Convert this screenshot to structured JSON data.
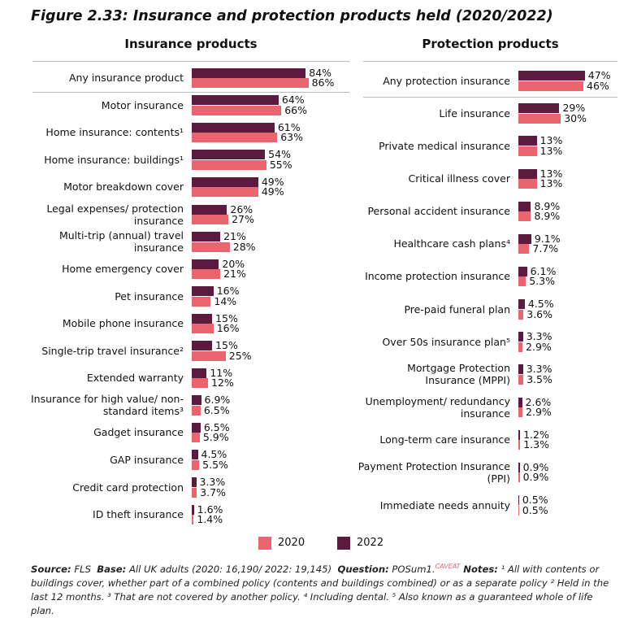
{
  "title": "Figure 2.33: Insurance and protection products held (2020/2022)",
  "chart_data": [
    {
      "type": "bar",
      "orientation": "horizontal",
      "title": "Insurance products",
      "categories": [
        "Any insurance product",
        "Motor insurance",
        "Home insurance: contents¹",
        "Home insurance: buildings¹",
        "Motor breakdown cover",
        "Legal expenses/ protection insurance",
        "Multi-trip (annual) travel insurance",
        "Home emergency cover",
        "Pet insurance",
        "Mobile phone insurance",
        "Single-trip travel insurance²",
        "Extended warranty",
        "Insurance for high value/ non-standard items³",
        "Gadget insurance",
        "GAP insurance",
        "Credit card protection",
        "ID theft insurance"
      ],
      "xlim": [
        0,
        100
      ],
      "series": [
        {
          "name": "2020",
          "color": "#e8646e",
          "values": [
            86,
            66,
            63,
            55,
            49,
            27,
            28,
            21,
            14,
            16,
            25,
            12,
            6.5,
            5.9,
            5.5,
            3.7,
            1.4
          ],
          "value_labels": [
            "86%",
            "66%",
            "63%",
            "55%",
            "49%",
            "27%",
            "28%",
            "21%",
            "14%",
            "16%",
            "25%",
            "12%",
            "6.5%",
            "5.9%",
            "5.5%",
            "3.7%",
            "1.4%"
          ]
        },
        {
          "name": "2022",
          "color": "#5b1a3e",
          "values": [
            84,
            64,
            61,
            54,
            49,
            26,
            21,
            20,
            16,
            15,
            15,
            11,
            6.9,
            6.5,
            4.5,
            3.3,
            1.6
          ],
          "value_labels": [
            "84%",
            "64%",
            "61%",
            "54%",
            "49%",
            "26%",
            "21%",
            "20%",
            "16%",
            "15%",
            "15%",
            "11%",
            "6.9%",
            "6.5%",
            "4.5%",
            "3.3%",
            "1.6%"
          ]
        }
      ]
    },
    {
      "type": "bar",
      "orientation": "horizontal",
      "title": "Protection products",
      "categories": [
        "Any protection insurance",
        "Life insurance",
        "Private medical insurance",
        "Critical illness cover",
        "Personal accident insurance",
        "Healthcare cash plans⁴",
        "Income protection insurance",
        "Pre-paid funeral plan",
        "Over 50s insurance plan⁵",
        "Mortgage Protection Insurance (MPPI)",
        "Unemployment/ redundancy insurance",
        "Long-term care insurance",
        "Payment Protection Insurance (PPI)",
        "Immediate needs annuity"
      ],
      "xlim": [
        0,
        100
      ],
      "series": [
        {
          "name": "2020",
          "color": "#e8646e",
          "values": [
            46,
            30,
            13,
            13,
            8.9,
            7.7,
            5.3,
            3.6,
            2.9,
            3.5,
            2.9,
            1.3,
            0.9,
            0.5
          ],
          "value_labels": [
            "46%",
            "30%",
            "13%",
            "13%",
            "8.9%",
            "7.7%",
            "5.3%",
            "3.6%",
            "2.9%",
            "3.5%",
            "2.9%",
            "1.3%",
            "0.9%",
            "0.5%"
          ]
        },
        {
          "name": "2022",
          "color": "#5b1a3e",
          "values": [
            47,
            29,
            13,
            13,
            8.9,
            9.1,
            6.1,
            4.5,
            3.3,
            3.3,
            2.6,
            1.2,
            0.9,
            0.5
          ],
          "value_labels": [
            "47%",
            "29%",
            "13%",
            "13%",
            "8.9%",
            "9.1%",
            "6.1%",
            "4.5%",
            "3.3%",
            "3.3%",
            "2.6%",
            "1.2%",
            "0.9%",
            "0.5%"
          ]
        }
      ]
    }
  ],
  "footnote": {
    "source_label": "Source:",
    "source": "FLS",
    "base_label": "Base:",
    "base": "All UK adults (2020: 16,190/ 2022: 19,145)",
    "question_label": "Question:",
    "question": "POSum1.",
    "caveat": "CAVEAT",
    "notes_label": "Notes:",
    "notes": "¹ All with contents or buildings cover, whether part of a combined policy (contents and buildings combined) or as a separate policy ² Held in the last 12 months. ³ That are not covered by another policy. ⁴ Including dental. ⁵ Also known as a guaranteed whole of life plan."
  }
}
